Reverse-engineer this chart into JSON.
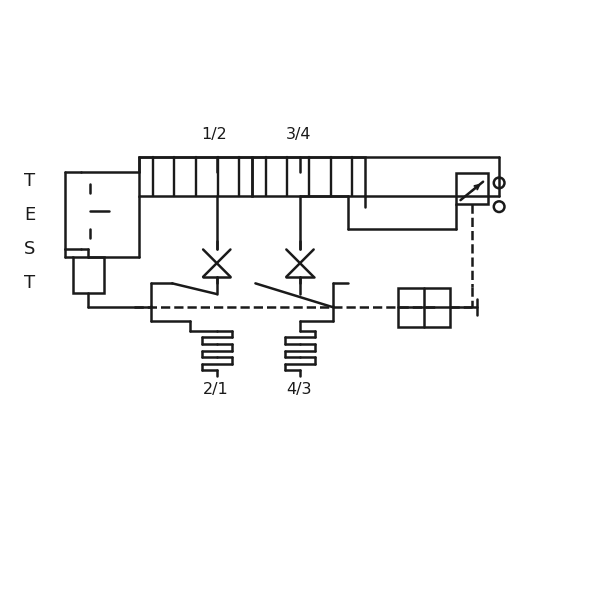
{
  "bg": "#ffffff",
  "lc": "#1a1a1a",
  "lw": 1.8,
  "fig": [
    6.0,
    6.0
  ],
  "dpi": 100,
  "label_12": "1/2",
  "label_34": "3/4",
  "label_21": "2/1",
  "label_43": "4/3",
  "test_letters": [
    "T",
    "E",
    "S",
    "T"
  ],
  "fs_label": 11.5,
  "fs_test": 13
}
